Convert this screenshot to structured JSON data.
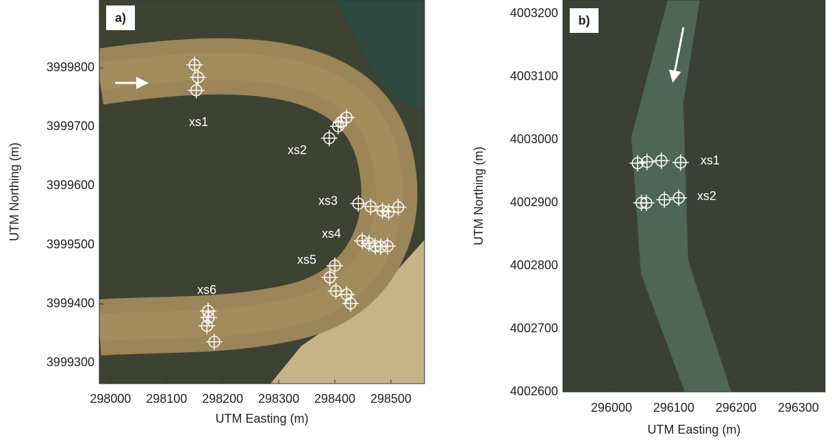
{
  "chart_data": [
    {
      "type": "scatter",
      "label": "a)",
      "x_label": "UTM Easting (m)",
      "y_label": "UTM Northing (m)",
      "xlim": [
        297980,
        298560
      ],
      "ylim": [
        3999265,
        3999915
      ],
      "xticks": [
        298000,
        298100,
        298200,
        298300,
        298400,
        298500
      ],
      "yticks": [
        3999300,
        3999400,
        3999500,
        3999600,
        3999700,
        3999800
      ],
      "series": [
        {
          "name": "xs1",
          "color": "#ffffff",
          "x": [
            298150,
            298156,
            298153
          ],
          "values": [
            3999805,
            3999784,
            3999762
          ]
        },
        {
          "name": "xs2",
          "color": "#ffffff",
          "x": [
            298390,
            298406,
            298411,
            298421
          ],
          "values": [
            3999681,
            3999701,
            3999708,
            3999716
          ]
        },
        {
          "name": "xs3",
          "color": "#ffffff",
          "x": [
            298442,
            298464,
            298485,
            298496,
            298513
          ],
          "values": [
            3999570,
            3999565,
            3999558,
            3999556,
            3999564
          ]
        },
        {
          "name": "xs4",
          "color": "#ffffff",
          "x": [
            298449,
            298461,
            298472,
            298482,
            298494
          ],
          "values": [
            3999507,
            3999503,
            3999498,
            3999497,
            3999498
          ]
        },
        {
          "name": "xs5",
          "color": "#ffffff",
          "x": [
            298400,
            298391,
            298402,
            298421,
            298428
          ],
          "values": [
            3999465,
            3999445,
            3999422,
            3999416,
            3999401
          ]
        },
        {
          "name": "xs6",
          "color": "#ffffff",
          "x": [
            298174,
            298175,
            298172,
            298185
          ],
          "values": [
            3999388,
            3999377,
            3999363,
            3999336
          ]
        }
      ]
    },
    {
      "type": "scatter",
      "label": "b)",
      "x_label": "UTM Easting (m)",
      "y_label": "UTM Northing (m)",
      "xlim": [
        295922,
        296343
      ],
      "ylim": [
        4002600,
        4003222
      ],
      "xticks": [
        296000,
        296100,
        296200,
        296300
      ],
      "yticks": [
        4002600,
        4002700,
        4002800,
        4002900,
        4003000,
        4003100,
        4003200
      ],
      "series": [
        {
          "name": "xs1",
          "color": "#ffffff",
          "x": [
            296042,
            296057,
            296080,
            296111
          ],
          "values": [
            4002963,
            4002965,
            4002967,
            4002964
          ]
        },
        {
          "name": "xs2",
          "color": "#ffffff",
          "x": [
            296048,
            296056,
            296085,
            296108
          ],
          "values": [
            4002900,
            4002900,
            4002905,
            4002908
          ]
        }
      ]
    }
  ]
}
